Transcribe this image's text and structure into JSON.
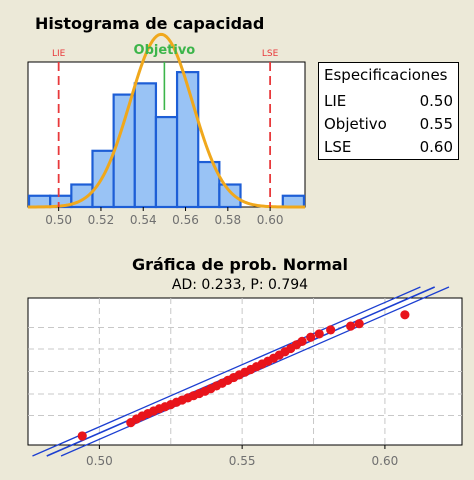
{
  "chart_data": [
    {
      "type": "bar",
      "title": "Histograma de capacidad",
      "bins": [
        {
          "x0": 0.486,
          "x1": 0.496,
          "count": 1
        },
        {
          "x0": 0.496,
          "x1": 0.506,
          "count": 1
        },
        {
          "x0": 0.506,
          "x1": 0.516,
          "count": 2
        },
        {
          "x0": 0.516,
          "x1": 0.526,
          "count": 5
        },
        {
          "x0": 0.526,
          "x1": 0.536,
          "count": 10
        },
        {
          "x0": 0.536,
          "x1": 0.546,
          "count": 11
        },
        {
          "x0": 0.546,
          "x1": 0.556,
          "count": 8
        },
        {
          "x0": 0.556,
          "x1": 0.566,
          "count": 12
        },
        {
          "x0": 0.566,
          "x1": 0.576,
          "count": 4
        },
        {
          "x0": 0.576,
          "x1": 0.586,
          "count": 2
        },
        {
          "x0": 0.586,
          "x1": 0.596,
          "count": 0
        },
        {
          "x0": 0.596,
          "x1": 0.606,
          "count": 0
        },
        {
          "x0": 0.606,
          "x1": 0.616,
          "count": 1
        }
      ],
      "normal_fit": {
        "mean": 0.5485,
        "sd": 0.0148
      },
      "xlim": [
        0.4855,
        0.6165
      ],
      "ylim": [
        0,
        12.9
      ],
      "xticks": [
        0.5,
        0.52,
        0.54,
        0.56,
        0.58,
        0.6
      ],
      "xtick_labels": [
        "0.50",
        "0.52",
        "0.54",
        "0.56",
        "0.58",
        "0.60"
      ],
      "reference_lines": [
        {
          "label": "LIE",
          "x": 0.5,
          "color": "#e8393b"
        },
        {
          "label": "Objetivo",
          "x": 0.55,
          "color": "#3cb54a"
        },
        {
          "label": "LSE",
          "x": 0.6,
          "color": "#e8393b"
        }
      ],
      "colors": {
        "bar_fill": "#99c3f5",
        "bar_edge": "#1d5ed6",
        "curve": "#f0a81c"
      }
    },
    {
      "type": "scatter",
      "title": "Gráfica de prob. Normal",
      "subtitle": "AD: 0.233, P: 0.794",
      "xlim": [
        0.475,
        0.627
      ],
      "xticks": [
        0.5,
        0.55,
        0.6
      ],
      "xtick_labels": [
        "0.50",
        "0.55",
        "0.60"
      ],
      "probability_range": [
        0.3,
        99.7
      ],
      "points": [
        [
          0.494,
          0.8
        ],
        [
          0.511,
          2.8
        ],
        [
          0.513,
          3.8
        ],
        [
          0.515,
          4.8
        ],
        [
          0.517,
          5.8
        ],
        [
          0.519,
          7.0
        ],
        [
          0.521,
          8.2
        ],
        [
          0.523,
          9.4
        ],
        [
          0.525,
          10.8
        ],
        [
          0.527,
          12.5
        ],
        [
          0.529,
          14.3
        ],
        [
          0.531,
          16.2
        ],
        [
          0.533,
          18.3
        ],
        [
          0.535,
          20.5
        ],
        [
          0.537,
          23.0
        ],
        [
          0.539,
          26.0
        ],
        [
          0.541,
          29.5
        ],
        [
          0.543,
          33.0
        ],
        [
          0.545,
          37.0
        ],
        [
          0.547,
          41.0
        ],
        [
          0.549,
          45.0
        ],
        [
          0.551,
          49.0
        ],
        [
          0.553,
          53.0
        ],
        [
          0.555,
          57.0
        ],
        [
          0.557,
          61.0
        ],
        [
          0.559,
          65.0
        ],
        [
          0.561,
          69.0
        ],
        [
          0.563,
          73.0
        ],
        [
          0.565,
          77.0
        ],
        [
          0.567,
          80.5
        ],
        [
          0.569,
          84.0
        ],
        [
          0.571,
          87.0
        ],
        [
          0.574,
          90.0
        ],
        [
          0.577,
          92.0
        ],
        [
          0.581,
          94.0
        ],
        [
          0.588,
          95.5
        ],
        [
          0.591,
          96.3
        ],
        [
          0.607,
          98.3
        ]
      ],
      "fit_line": {
        "mean": 0.5495,
        "sd": 0.0215
      },
      "ci_halfwidth": 0.005,
      "colors": {
        "points": "#e8141b",
        "lines": "#1c3fd1",
        "grid": "#c8c8c8"
      }
    }
  ],
  "spec_box": {
    "title": "Especificaciones",
    "rows": [
      {
        "label": "LIE",
        "value": "0.50"
      },
      {
        "label": "Objetivo",
        "value": "0.55"
      },
      {
        "label": "LSE",
        "value": "0.60"
      }
    ]
  }
}
